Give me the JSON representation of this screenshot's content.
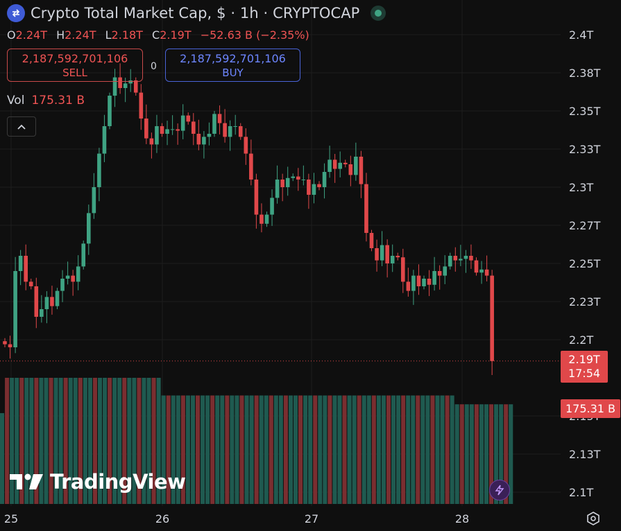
{
  "header": {
    "title": "Crypto Total Market Cap, $ · 1h · CRYPTOCAP",
    "logo_icon": "exchange-arrows-icon",
    "status_icon": "market-open-dot-icon"
  },
  "ohlc": {
    "o_label": "O",
    "o_value": "2.24T",
    "h_label": "H",
    "h_value": "2.24T",
    "l_label": "L",
    "l_value": "2.18T",
    "c_label": "C",
    "c_value": "2.19T",
    "change": "−52.63 B (−2.35%)"
  },
  "trade": {
    "sell_price": "2,187,592,701,106",
    "sell_label": "SELL",
    "spread": "0",
    "buy_price": "2,187,592,701,106",
    "buy_label": "BUY"
  },
  "volume_legend": {
    "label": "Vol",
    "value": "175.31 B"
  },
  "last_price": {
    "price": "2.19T",
    "countdown": "17:54"
  },
  "volume_tag": "175.31 B",
  "branding": {
    "name": "TradingView"
  },
  "colors": {
    "up": "#3fa383",
    "down": "#e0484a",
    "vol_up": "#1f5a50",
    "vol_down": "#7a2e30",
    "background": "#0f0f0f",
    "grid": "#1e1e1e"
  },
  "chart_data": {
    "type": "candlestick",
    "title": "Crypto Total Market Cap, $ · 1h · CRYPTOCAP",
    "y_axis_ticks": [
      "2.4T",
      "2.38T",
      "2.35T",
      "2.33T",
      "2.3T",
      "2.27T",
      "2.25T",
      "2.23T",
      "2.2T",
      "2.15T",
      "2.13T",
      "2.1T"
    ],
    "x_axis_ticks": [
      "25",
      "26",
      "27",
      "28"
    ],
    "ylim": [
      2.09,
      2.41
    ],
    "closes": [
      2.197,
      2.195,
      2.245,
      2.255,
      2.238,
      2.235,
      2.215,
      2.22,
      2.228,
      2.222,
      2.232,
      2.24,
      2.242,
      2.238,
      2.248,
      2.263,
      2.283,
      2.3,
      2.322,
      2.34,
      2.36,
      2.372,
      2.365,
      2.368,
      2.37,
      2.362,
      2.345,
      2.332,
      2.328,
      2.34,
      2.335,
      2.338,
      2.338,
      2.337,
      2.347,
      2.343,
      2.335,
      2.328,
      2.333,
      2.335,
      2.348,
      2.342,
      2.333,
      2.34,
      2.34,
      2.333,
      2.322,
      2.305,
      2.282,
      2.276,
      2.282,
      2.293,
      2.305,
      2.3,
      2.306,
      2.307,
      2.305,
      2.305,
      2.295,
      2.302,
      2.3,
      2.31,
      2.318,
      2.312,
      2.316,
      2.315,
      2.308,
      2.32,
      2.302,
      2.27,
      2.26,
      2.252,
      2.262,
      2.25,
      2.255,
      2.254,
      2.238,
      2.232,
      2.242,
      2.235,
      2.24,
      2.236,
      2.245,
      2.242,
      2.248,
      2.255,
      2.252,
      2.253,
      2.255,
      2.252,
      2.244,
      2.246,
      2.242,
      2.186
    ],
    "volume": {
      "levels": [
        0.72,
        1.0,
        0.86,
        0.79
      ],
      "level_counts": [
        1,
        32,
        60,
        12
      ],
      "total_bars": 105,
      "last_value": "175.31 B"
    }
  }
}
